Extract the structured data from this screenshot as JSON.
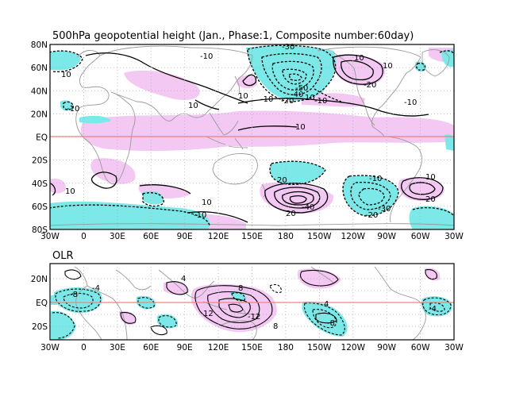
{
  "top_panel": {
    "title": "500hPa geopotential height (Jan., Phase:1, Composite number:60day)",
    "lat_labels": [
      "80N",
      "60N",
      "40N",
      "20N",
      "EQ",
      "20S",
      "40S",
      "60S",
      "80S"
    ],
    "lon_labels": [
      "30W",
      "0",
      "30E",
      "60E",
      "90E",
      "120E",
      "150E",
      "180",
      "150W",
      "120W",
      "90W",
      "60W",
      "30W"
    ],
    "contour_labels": [
      "-30",
      "-10",
      "10",
      "10",
      "-10",
      "10",
      "-10",
      "10",
      "10",
      "-50",
      "-40",
      "-20",
      "10",
      "-10",
      "-20",
      "10",
      "20",
      "-10",
      "-10",
      "10",
      "10",
      "20",
      "-30",
      "-20",
      "-40",
      "20",
      "-10",
      "10"
    ]
  },
  "bottom_panel": {
    "title": "OLR",
    "lat_labels": [
      "20N",
      "EQ",
      "20S"
    ],
    "lon_labels": [
      "30W",
      "0",
      "30E",
      "60E",
      "90E",
      "120E",
      "150E",
      "180",
      "150W",
      "120W",
      "90W",
      "60W",
      "30W"
    ],
    "contour_labels": [
      "4",
      "8",
      "-8",
      "-4",
      "12",
      "-12",
      "-8",
      "4",
      "8",
      "-4"
    ]
  },
  "colors": {
    "positive_shade": "#f3c8f3",
    "negative_shade": "#7de8e8",
    "coastline": "#9a9a9a",
    "equator": "#f08080",
    "grid": "#b0b0b0"
  }
}
